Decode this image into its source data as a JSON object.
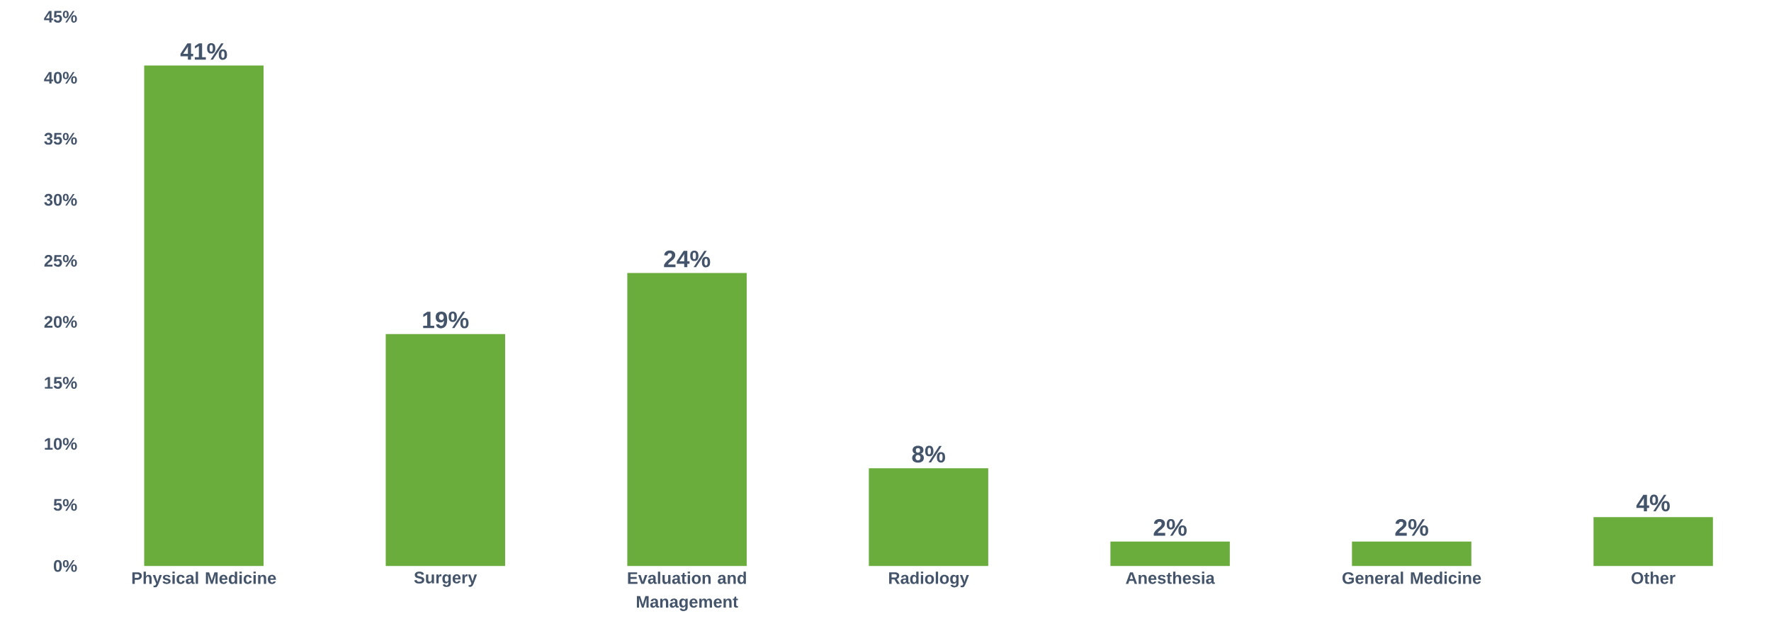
{
  "chart_data": {
    "type": "bar",
    "categories": [
      "Physical Medicine",
      "Surgery",
      "Evaluation and Management",
      "Radiology",
      "Anesthesia",
      "General Medicine",
      "Other"
    ],
    "values": [
      41,
      19,
      24,
      8,
      2,
      2,
      4
    ],
    "value_labels": [
      "41%",
      "19%",
      "24%",
      "8%",
      "2%",
      "2%",
      "4%"
    ],
    "color": "#6aad3d",
    "ylim": [
      0,
      45
    ],
    "yticks": [
      {
        "value": 0,
        "label": "0%"
      },
      {
        "value": 5,
        "label": "5%"
      },
      {
        "value": 10,
        "label": "10%"
      },
      {
        "value": 15,
        "label": "15%"
      },
      {
        "value": 20,
        "label": "20%"
      },
      {
        "value": 25,
        "label": "25%"
      },
      {
        "value": 30,
        "label": "30%"
      },
      {
        "value": 35,
        "label": "35%"
      },
      {
        "value": 40,
        "label": "40%"
      },
      {
        "value": 45,
        "label": "45%"
      }
    ],
    "grid": false
  }
}
